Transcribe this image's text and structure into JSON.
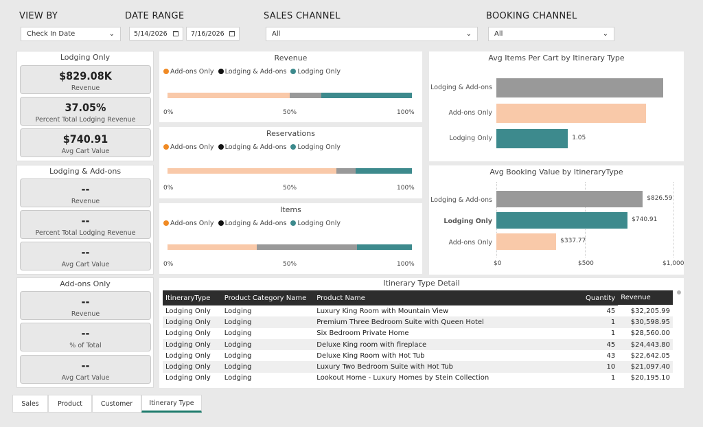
{
  "filters": {
    "view_by": {
      "label": "VIEW BY",
      "value": "Check In Date"
    },
    "date_range": {
      "label": "DATE RANGE",
      "start": "5/14/2026",
      "end": "7/16/2026"
    },
    "sales_channel": {
      "label": "SALES CHANNEL",
      "value": "All"
    },
    "booking_channel": {
      "label": "BOOKING CHANNEL",
      "value": "All"
    }
  },
  "kpi_groups": [
    {
      "title": "Lodging Only",
      "cards": [
        {
          "value": "$829.08K",
          "label": "Revenue"
        },
        {
          "value": "37.05%",
          "label": "Percent Total Lodging Revenue"
        },
        {
          "value": "$740.91",
          "label": "Avg Cart Value"
        }
      ]
    },
    {
      "title": "Lodging & Add-ons",
      "cards": [
        {
          "value": "--",
          "label": "Revenue"
        },
        {
          "value": "--",
          "label": "Percent Total Lodging Revenue"
        },
        {
          "value": "--",
          "label": "Avg Cart Value"
        }
      ]
    },
    {
      "title": "Add-ons Only",
      "cards": [
        {
          "value": "--",
          "label": "Revenue"
        },
        {
          "value": "--",
          "label": "% of Total"
        },
        {
          "value": "--",
          "label": "Avg Cart Value"
        }
      ]
    }
  ],
  "legend": [
    "Add-ons Only",
    "Lodging & Add-ons",
    "Lodging Only"
  ],
  "colors": {
    "addons": "#f9c9a9",
    "lodging_addons": "#999999",
    "lodging": "#3d8a8d",
    "dot_addons": "#f08a24",
    "dot_lodging_addons": "#111111",
    "tab_accent": "#1d7a6b"
  },
  "chart_data": [
    {
      "type": "bar",
      "title": "Revenue",
      "orientation": "horizontal-100%-stacked",
      "series": [
        {
          "name": "Add-ons Only",
          "values": [
            0.5
          ]
        },
        {
          "name": "Lodging & Add-ons",
          "values": [
            0.13
          ]
        },
        {
          "name": "Lodging Only",
          "values": [
            0.37
          ]
        }
      ],
      "ticks": [
        "0%",
        "50%",
        "100%"
      ]
    },
    {
      "type": "bar",
      "title": "Reservations",
      "orientation": "horizontal-100%-stacked",
      "series": [
        {
          "name": "Add-ons Only",
          "values": [
            0.69
          ]
        },
        {
          "name": "Lodging & Add-ons",
          "values": [
            0.08
          ]
        },
        {
          "name": "Lodging Only",
          "values": [
            0.23
          ]
        }
      ],
      "ticks": [
        "0%",
        "50%",
        "100%"
      ]
    },
    {
      "type": "bar",
      "title": "Items",
      "orientation": "horizontal-100%-stacked",
      "series": [
        {
          "name": "Add-ons Only",
          "values": [
            0.365
          ]
        },
        {
          "name": "Lodging & Add-ons",
          "values": [
            0.41
          ]
        },
        {
          "name": "Lodging Only",
          "values": [
            0.225
          ]
        }
      ],
      "ticks": [
        "0%",
        "50%",
        "100%"
      ]
    },
    {
      "type": "bar",
      "title": "Avg Items Per Cart by Itinerary Type",
      "orientation": "horizontal",
      "categories": [
        "Lodging & Add-ons",
        "Add-ons Only",
        "Lodging Only"
      ],
      "values": [
        2.45,
        2.2,
        1.05
      ],
      "data_labels": [
        "",
        "",
        "1.05"
      ],
      "xlim": [
        0,
        2.6
      ]
    },
    {
      "type": "bar",
      "title": "Avg Booking Value by ItineraryType",
      "orientation": "horizontal",
      "categories": [
        "Lodging & Add-ons",
        "Lodging Only",
        "Add-ons Only"
      ],
      "values": [
        826.59,
        740.91,
        337.77
      ],
      "data_labels": [
        "$826.59",
        "$740.91",
        "$337.77"
      ],
      "xlim": [
        0,
        1000
      ],
      "ticks": [
        "$0",
        "$500",
        "$1,000"
      ]
    }
  ],
  "table": {
    "title": "Itinerary Type Detail",
    "columns": [
      "ItineraryType",
      "Product Category Name",
      "Product Name",
      "Quantity",
      "Revenue"
    ],
    "rows": [
      [
        "Lodging Only",
        "Lodging",
        "Luxury King Room with Mountain View",
        "45",
        "$32,205.99"
      ],
      [
        "Lodging Only",
        "Lodging",
        "Premium Three Bedroom Suite with Queen Hotel",
        "1",
        "$30,598.95"
      ],
      [
        "Lodging Only",
        "Lodging",
        "Six Bedroom Private Home",
        "1",
        "$28,560.00"
      ],
      [
        "Lodging Only",
        "Lodging",
        "Deluxe King room with fireplace",
        "45",
        "$24,443.80"
      ],
      [
        "Lodging Only",
        "Lodging",
        "Deluxe King Room with Hot Tub",
        "43",
        "$22,642.05"
      ],
      [
        "Lodging Only",
        "Lodging",
        "Luxury Two Bedroom Suite with Hot Tub",
        "10",
        "$21,097.40"
      ],
      [
        "Lodging Only",
        "Lodging",
        "Lookout Home - Luxury Homes by Stein Collection",
        "1",
        "$20,195.10"
      ]
    ]
  },
  "tabs": [
    "Sales",
    "Product",
    "Customer",
    "Itinerary Type"
  ],
  "active_tab": "Itinerary Type"
}
